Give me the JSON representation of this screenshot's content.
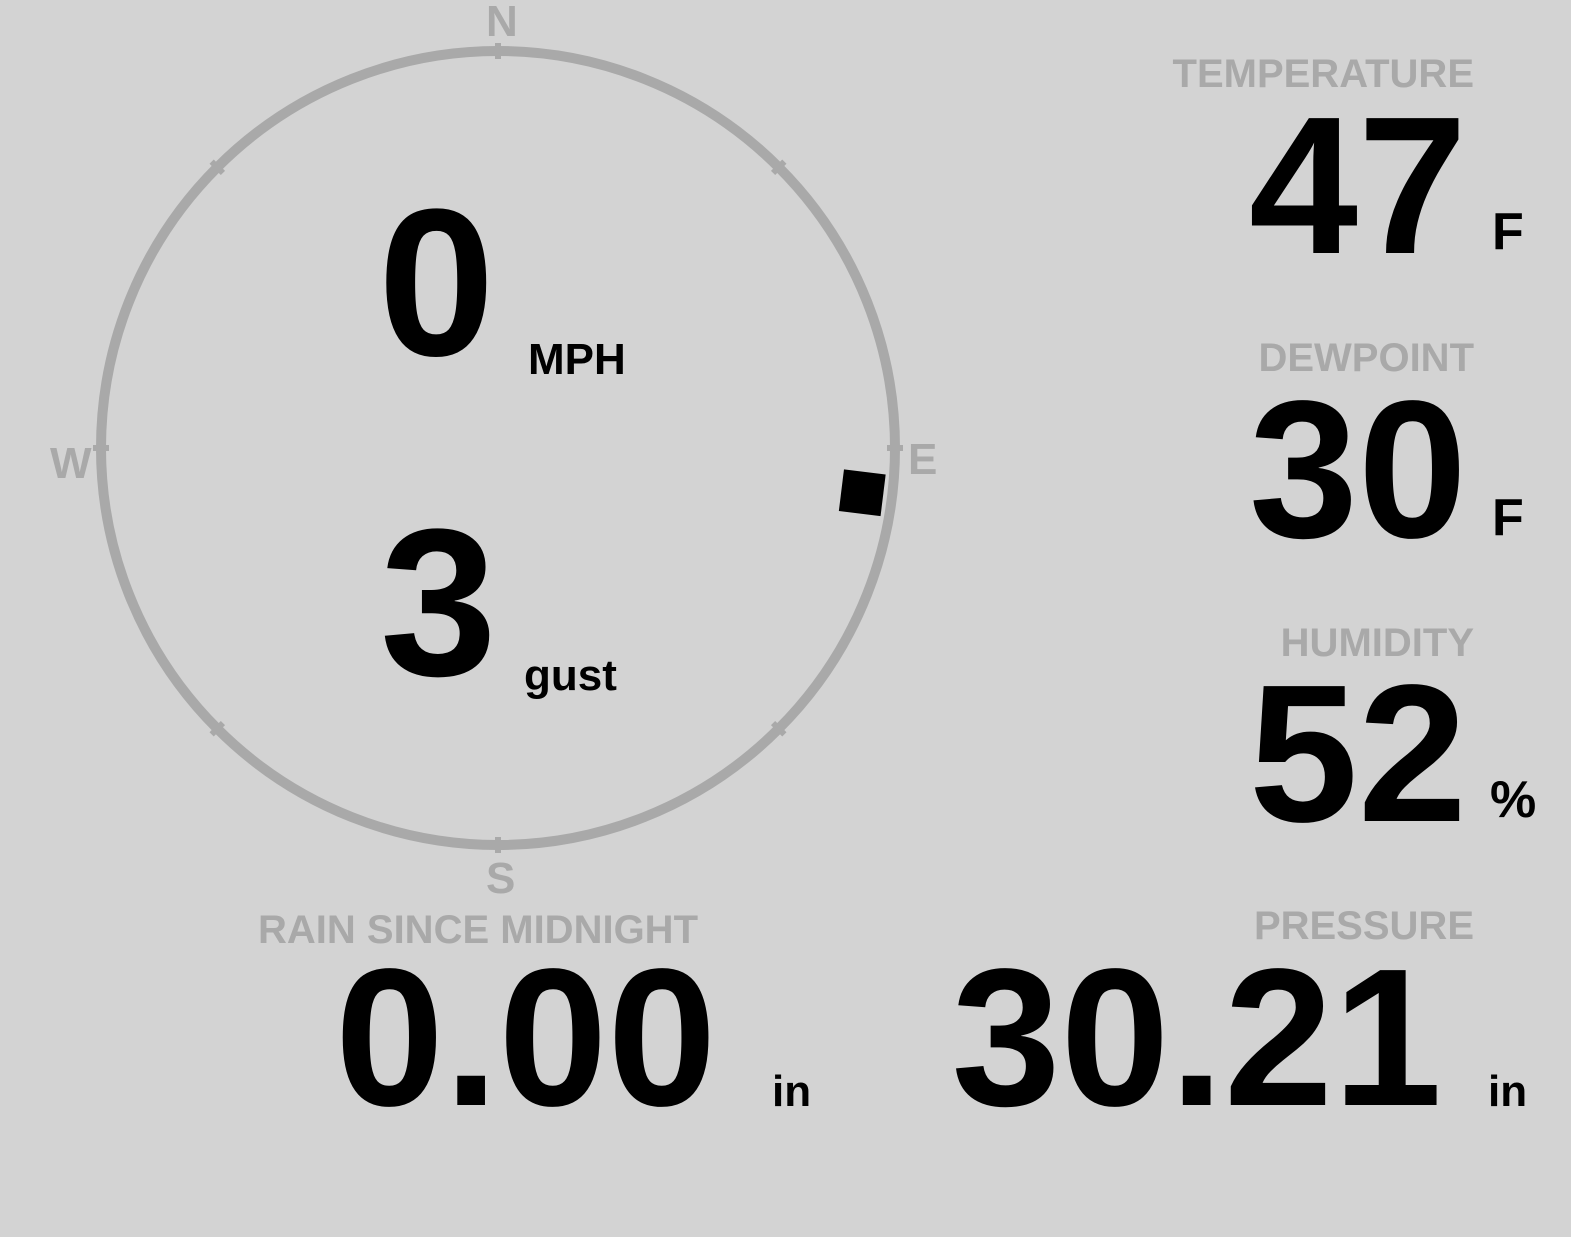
{
  "compass": {
    "north": "N",
    "south": "S",
    "east": "E",
    "west": "W",
    "wind_direction_deg": 97,
    "ring_color": "#a9a9a9"
  },
  "wind": {
    "speed": "0",
    "speed_unit": "MPH",
    "gust": "3",
    "gust_unit": "gust"
  },
  "temperature": {
    "label": "TEMPERATURE",
    "value": "47",
    "unit": "F"
  },
  "dewpoint": {
    "label": "DEWPOINT",
    "value": "30",
    "unit": "F"
  },
  "humidity": {
    "label": "HUMIDITY",
    "value": "52",
    "unit": "%"
  },
  "rain": {
    "label": "RAIN SINCE MIDNIGHT",
    "value": "0.00",
    "unit": "in"
  },
  "pressure": {
    "label": "PRESSURE",
    "value": "30.21",
    "unit": "in"
  },
  "colors": {
    "background": "#d3d3d3",
    "label": "#a9a9a9",
    "value": "#000000"
  }
}
